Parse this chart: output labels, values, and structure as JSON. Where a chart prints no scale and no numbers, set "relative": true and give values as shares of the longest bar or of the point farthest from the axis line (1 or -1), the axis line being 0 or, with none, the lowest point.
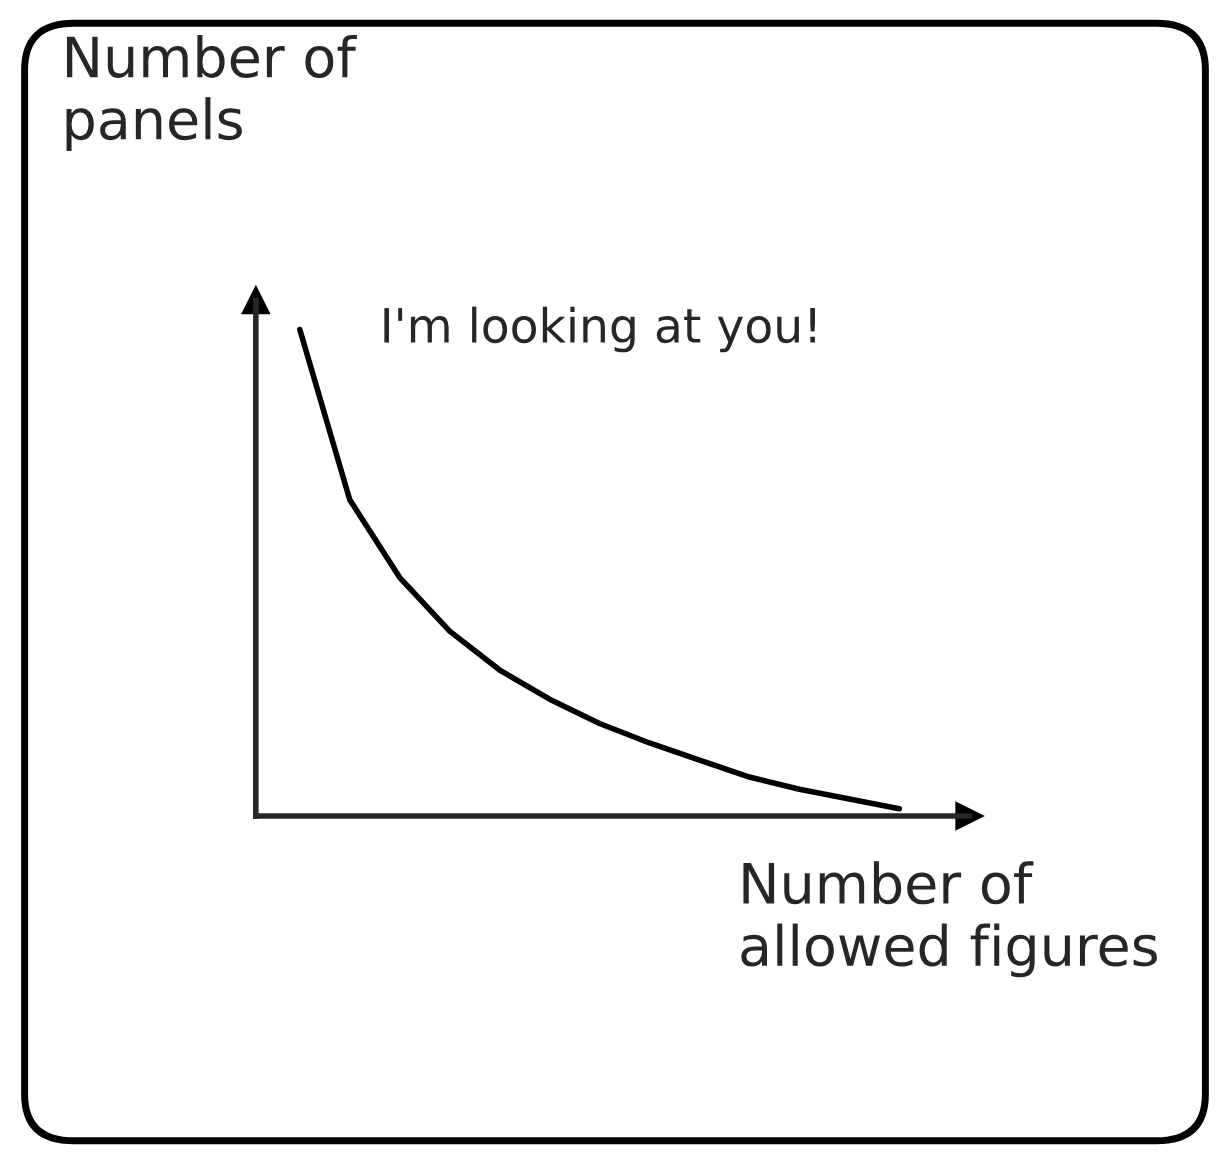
{
  "chart_data": {
    "type": "line",
    "relative": true,
    "xlabel": "Number of\nallowed figures",
    "ylabel": "Number of\npanels",
    "categories": [
      null,
      null,
      null,
      null,
      null,
      null,
      null,
      null,
      null,
      null,
      null,
      null,
      null
    ],
    "series": [
      {
        "color": "#000000",
        "values": [
          1,
          0.65,
          0.49,
          0.38,
          0.3,
          0.24,
          0.19,
          0.15,
          0.115,
          0.08,
          0.055,
          0.035,
          0.015
        ]
      }
    ],
    "annotations": [
      "I'm looking at you!"
    ],
    "tick_labels": false,
    "legend": false,
    "marker": "none",
    "line_style": "solid"
  }
}
